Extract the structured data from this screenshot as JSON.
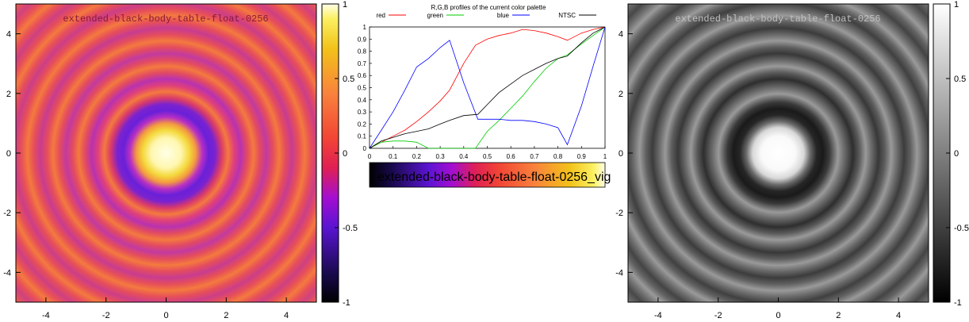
{
  "left_plot": {
    "title": "extended-black-body-table-float-0256",
    "x_ticks": [
      "-4",
      "-2",
      "0",
      "2",
      "4"
    ],
    "y_ticks": [
      "4",
      "2",
      "0",
      "-2",
      "-4"
    ],
    "colorbar_ticks": [
      "1",
      "0.5",
      "0",
      "-0.5",
      "-1"
    ]
  },
  "right_plot": {
    "title": "extended-black-body-table-float-0256",
    "x_ticks": [
      "-4",
      "-2",
      "0",
      "2",
      "4"
    ],
    "y_ticks": [
      "4",
      "2",
      "0",
      "-2",
      "-4"
    ],
    "colorbar_ticks": [
      "1",
      "0.5",
      "0",
      "-0.5",
      "-1"
    ]
  },
  "palette_label": "extended-black-body-table-float-0256_vig",
  "chart_data": [
    {
      "type": "heatmap",
      "panel": "left",
      "title": "extended-black-body-table-float-0256",
      "xlim": [
        -5,
        5
      ],
      "ylim": [
        -5,
        5
      ],
      "zlim": [
        -1,
        1
      ],
      "palette": "color"
    },
    {
      "type": "line",
      "panel": "middle",
      "title": "R,G,B profiles of the current color palette",
      "xlim": [
        0,
        1
      ],
      "ylim": [
        0,
        1
      ],
      "x_ticks": [
        "0",
        "0.1",
        "0.2",
        "0.3",
        "0.4",
        "0.5",
        "0.6",
        "0.7",
        "0.8",
        "0.9",
        "1"
      ],
      "y_ticks": [
        "0",
        "0.1",
        "0.2",
        "0.3",
        "0.4",
        "0.5",
        "0.6",
        "0.7",
        "0.8",
        "0.9",
        "1"
      ],
      "legend": "top",
      "series": [
        {
          "name": "red",
          "color": "#ff0000",
          "x": [
            0,
            0.05,
            0.1,
            0.15,
            0.2,
            0.25,
            0.3,
            0.34,
            0.4,
            0.45,
            0.5,
            0.55,
            0.6,
            0.65,
            0.7,
            0.75,
            0.8,
            0.84,
            0.9,
            0.95,
            1.0
          ],
          "y": [
            0,
            0.05,
            0.1,
            0.15,
            0.22,
            0.3,
            0.39,
            0.48,
            0.7,
            0.85,
            0.9,
            0.93,
            0.95,
            0.98,
            0.97,
            0.95,
            0.92,
            0.89,
            0.95,
            0.98,
            1.0
          ]
        },
        {
          "name": "green",
          "color": "#00cc00",
          "x": [
            0,
            0.05,
            0.1,
            0.15,
            0.2,
            0.25,
            0.3,
            0.34,
            0.4,
            0.45,
            0.5,
            0.55,
            0.6,
            0.65,
            0.7,
            0.75,
            0.8,
            0.84,
            0.9,
            0.95,
            1.0
          ],
          "y": [
            0,
            0.05,
            0.06,
            0.06,
            0.05,
            0.0,
            0.0,
            0.0,
            0.0,
            0.0,
            0.14,
            0.23,
            0.33,
            0.43,
            0.55,
            0.66,
            0.74,
            0.77,
            0.86,
            0.93,
            1.0
          ]
        },
        {
          "name": "blue",
          "color": "#0000ff",
          "x": [
            0,
            0.05,
            0.1,
            0.15,
            0.2,
            0.25,
            0.3,
            0.34,
            0.4,
            0.46,
            0.5,
            0.55,
            0.6,
            0.65,
            0.7,
            0.75,
            0.8,
            0.84,
            0.9,
            0.95,
            1.0
          ],
          "y": [
            0,
            0.15,
            0.3,
            0.48,
            0.67,
            0.74,
            0.83,
            0.89,
            0.54,
            0.24,
            0.24,
            0.24,
            0.23,
            0.23,
            0.22,
            0.2,
            0.17,
            0.03,
            0.35,
            0.68,
            1.0
          ]
        },
        {
          "name": "NTSC",
          "color": "#000000",
          "x": [
            0,
            0.05,
            0.1,
            0.15,
            0.2,
            0.25,
            0.3,
            0.34,
            0.4,
            0.46,
            0.5,
            0.55,
            0.6,
            0.65,
            0.7,
            0.75,
            0.8,
            0.84,
            0.9,
            0.95,
            1.0
          ],
          "y": [
            0,
            0.06,
            0.09,
            0.12,
            0.14,
            0.16,
            0.2,
            0.23,
            0.27,
            0.28,
            0.36,
            0.46,
            0.53,
            0.6,
            0.65,
            0.7,
            0.74,
            0.76,
            0.87,
            0.95,
            1.0
          ]
        }
      ]
    },
    {
      "type": "heatmap",
      "panel": "right",
      "title": "extended-black-body-table-float-0256",
      "xlim": [
        -5,
        5
      ],
      "ylim": [
        -5,
        5
      ],
      "zlim": [
        -1,
        1
      ],
      "palette": "gray"
    }
  ]
}
